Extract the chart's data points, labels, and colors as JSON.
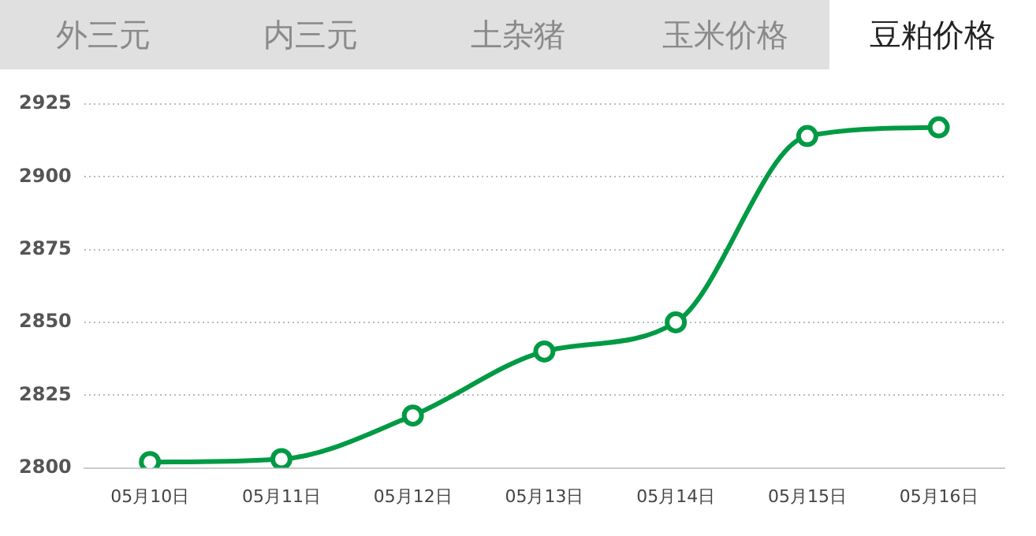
{
  "chart_data": {
    "type": "line",
    "title": "豆粕价格",
    "annotations": [
      "外三元",
      "内三元",
      "土杂猪",
      "玉米价格"
    ],
    "categories": [
      "05月10日",
      "05月11日",
      "05月12日",
      "05月13日",
      "05月14日",
      "05月15日",
      "05月16日"
    ],
    "series": [
      {
        "color": "#009a44",
        "values": [
          2802,
          2803,
          2818,
          2840,
          2850,
          2914,
          2917
        ]
      }
    ],
    "ylim": [
      2800,
      2925
    ],
    "yticks": [
      2800,
      2825,
      2850,
      2875,
      2900,
      2925
    ],
    "grid": "y",
    "legend": false,
    "marker": "circle",
    "line_style": "solid"
  }
}
